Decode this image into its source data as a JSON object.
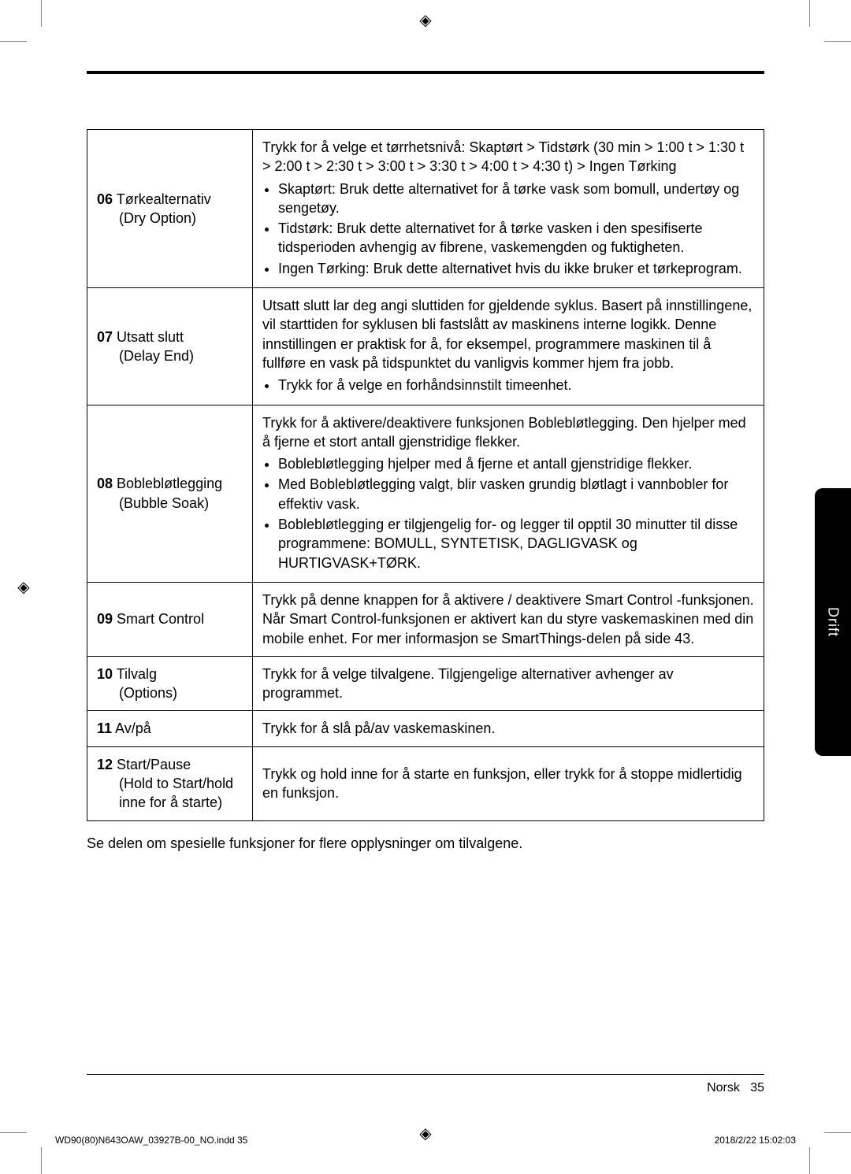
{
  "registration_glyph": "◈",
  "side_tab": "Drift",
  "thick_rule_color": "#000000",
  "table": {
    "rows": [
      {
        "num": "06",
        "title": "Tørkealternativ",
        "sub": "(Dry Option)",
        "body_intro": "Trykk for å velge et tørrhetsnivå: Skaptørt  > Tidstørk (30 min > 1:00 t > 1:30 t > 2:00 t > 2:30 t > 3:00 t > 3:30 t > 4:00 t > 4:30 t) > Ingen Tørking",
        "bullets": [
          "Skaptørt: Bruk dette alternativet for å tørke vask som bomull, undertøy og sengetøy.",
          "Tidstørk: Bruk dette alternativet for å tørke vasken i den spesifiserte tidsperioden avhengig av fibrene, vaskemengden og fuktigheten.",
          "Ingen Tørking: Bruk dette alternativet hvis du ikke bruker et tørkeprogram."
        ]
      },
      {
        "num": "07",
        "title": "Utsatt slutt",
        "sub": "(Delay End)",
        "body_intro": "Utsatt slutt lar deg angi sluttiden for gjeldende syklus. Basert på innstillingene, vil starttiden for syklusen bli fastslått av maskinens interne logikk. Denne innstillingen er praktisk for å, for eksempel, programmere maskinen til å fullføre en vask på tidspunktet du vanligvis kommer hjem fra jobb.",
        "bullets": [
          "Trykk for å velge en forhåndsinnstilt timeenhet."
        ]
      },
      {
        "num": "08",
        "title": "Boblebløtlegging",
        "sub": "(Bubble Soak)",
        "body_intro": "Trykk for å aktivere/deaktivere funksjonen Boblebløtlegging. Den hjelper med å fjerne et stort antall gjenstridige flekker.",
        "bullets": [
          "Boblebløtlegging hjelper med å fjerne et antall gjenstridige flekker.",
          "Med Boblebløtlegging valgt, blir vasken grundig bløtlagt i vannbobler for effektiv vask.",
          "Boblebløtlegging er tilgjengelig for- og legger til opptil 30 minutter til disse programmene: BOMULL, SYNTETISK, DAGLIGVASK og HURTIGVASK+TØRK."
        ]
      },
      {
        "num": "09",
        "title": "Smart Control",
        "sub": "",
        "body_intro": "Trykk på denne knappen for å aktivere / deaktivere Smart Control -funksjonen. Når Smart Control-funksjonen er aktivert kan du styre vaskemaskinen med din mobile enhet. For mer informasjon se SmartThings-delen på side 43.",
        "bullets": []
      },
      {
        "num": "10",
        "title": "Tilvalg",
        "sub": "(Options)",
        "body_intro": "Trykk for å velge tilvalgene. Tilgjengelige alternativer avhenger av programmet.",
        "bullets": []
      },
      {
        "num": "11",
        "title": "Av/på",
        "sub": "",
        "body_intro": "Trykk for å slå på/av vaskemaskinen.",
        "bullets": []
      },
      {
        "num": "12",
        "title": "Start/Pause",
        "sub": "(Hold to Start/hold inne for å starte)",
        "body_intro": "Trykk og hold inne for å starte en funksjon, eller trykk for å stoppe midlertidig en funksjon.",
        "bullets": []
      }
    ]
  },
  "footnote": "Se delen om spesielle funksjoner for flere opplysninger om tilvalgene.",
  "page_label": "Norsk",
  "page_number": "35",
  "print_left": "WD90(80)N643OAW_03927B-00_NO.indd   35",
  "print_right": "2018/2/22   15:02:03"
}
